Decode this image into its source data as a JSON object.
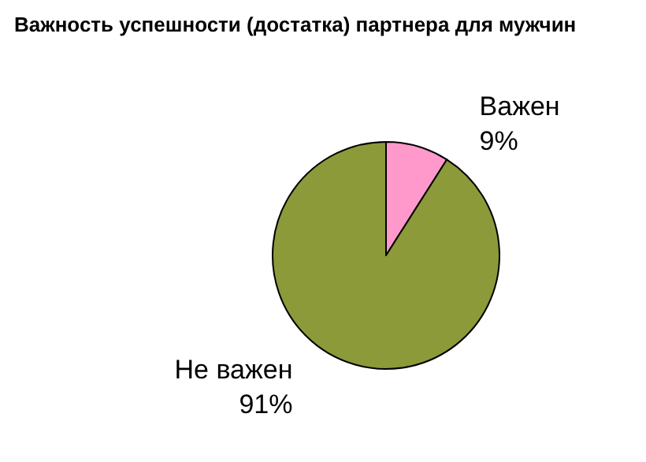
{
  "chart_data": {
    "type": "pie",
    "title": "Важность успешности (достатка) партнера для мужчин",
    "categories": [
      "Важен",
      "Не важен"
    ],
    "values": [
      9,
      91
    ],
    "value_labels": [
      "9%",
      "91%"
    ],
    "colors": [
      "#ff99cc",
      "#8c9a3a"
    ],
    "legend": false
  }
}
